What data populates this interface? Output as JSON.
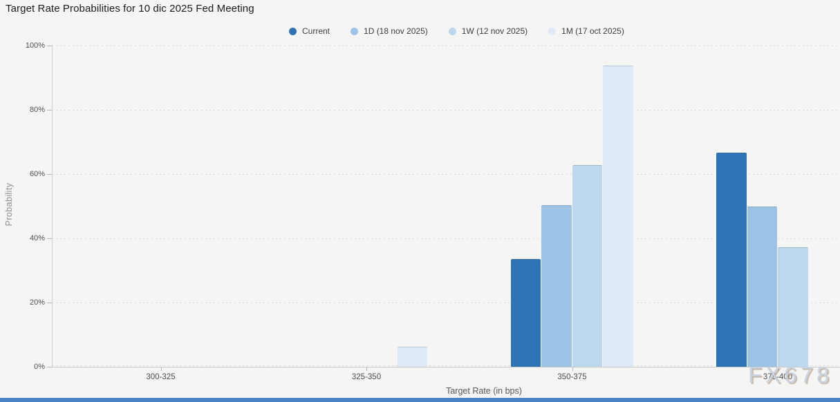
{
  "title": "Target Rate Probabilities for 10 dic 2025 Fed Meeting",
  "watermark": "FX678",
  "colors": {
    "background": "#f5f5f4",
    "grid": "#d7d7d7",
    "axis": "#c8c8c8",
    "tick_text": "#4e4e4e",
    "bottom_bar": "#4a83c6"
  },
  "chart_data": {
    "type": "bar",
    "title": "Target Rate Probabilities for 10 dic 2025 Fed Meeting",
    "categories": [
      "300-325",
      "325-350",
      "350-375",
      "375-400"
    ],
    "series": [
      {
        "name": "Current",
        "color": "#2E74B5",
        "values": [
          0,
          0,
          33.5,
          66.5
        ]
      },
      {
        "name": "1D (18 nov 2025)",
        "color": "#9CC3E6",
        "values": [
          0,
          0,
          50.2,
          49.8
        ]
      },
      {
        "name": "1W (12 nov 2025)",
        "color": "#BDD7EE",
        "values": [
          0,
          0,
          62.8,
          37.2
        ]
      },
      {
        "name": "1M (17 oct 2025)",
        "color": "#DEEBF7",
        "values": [
          0,
          6.3,
          93.7,
          0
        ]
      }
    ],
    "xlabel": "Target Rate (in bps)",
    "ylabel": "Probability",
    "ylim": [
      0,
      100
    ],
    "y_ticks": [
      "0%",
      "20%",
      "40%",
      "60%",
      "80%",
      "100%"
    ],
    "grid": "dotted-horizontal",
    "legend_position": "top"
  }
}
